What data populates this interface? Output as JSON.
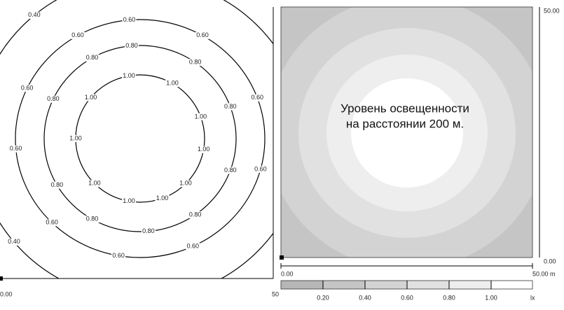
{
  "contour_plot": {
    "levels": [
      {
        "value": 0.4,
        "label": "0.40"
      },
      {
        "value": 0.6,
        "label": "0.60"
      },
      {
        "value": 0.8,
        "label": "0.80"
      },
      {
        "value": 1.0,
        "label": "1.00"
      }
    ],
    "x_start_label": "0.00",
    "x_end_label": "50"
  },
  "shaded_plot": {
    "title_lines": [
      "Уровень освещенности",
      "на расстоянии 200 м."
    ],
    "y_top_label": "50.00",
    "y_bottom_label": "0.00",
    "x_start_label": "0.00",
    "x_end_label": "50.00 m"
  },
  "legend": {
    "ticks": [
      {
        "value": 0.2,
        "label": "0.20"
      },
      {
        "value": 0.4,
        "label": "0.40"
      },
      {
        "value": 0.6,
        "label": "0.60"
      },
      {
        "value": 0.8,
        "label": "0.80"
      },
      {
        "value": 1.0,
        "label": "1.00"
      }
    ],
    "unit": "lx"
  }
}
